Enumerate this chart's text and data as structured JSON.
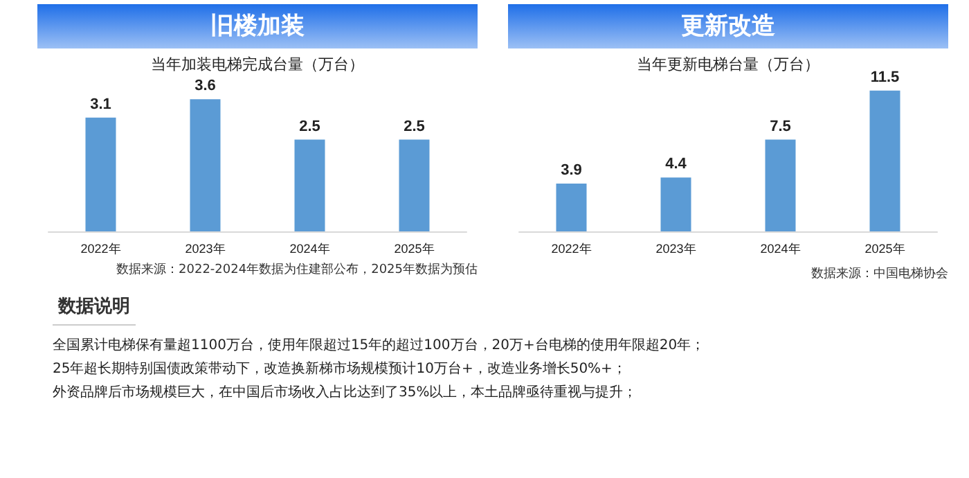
{
  "chart_data": [
    {
      "type": "bar",
      "title": "旧楼加装",
      "subtitle": "当年加装电梯完成台量（万台）",
      "categories": [
        "2022年",
        "2023年",
        "2024年",
        "2025年"
      ],
      "values": [
        3.1,
        3.6,
        2.5,
        2.5
      ],
      "color": "#5b9bd5",
      "data_labels": true,
      "annotations": [
        "数据来源：2022-2024年数据为住建部公布，2025年数据为预估"
      ]
    },
    {
      "type": "bar",
      "title": "更新改造",
      "subtitle": "当年更新电梯台量（万台）",
      "categories": [
        "2022年",
        "2023年",
        "2024年",
        "2025年"
      ],
      "values": [
        3.9,
        4.4,
        7.5,
        11.5
      ],
      "color": "#5b9bd5",
      "data_labels": true,
      "annotations": [
        "数据来源：中国电梯协会",
        "数据说明",
        "全国累计电梯保有量超1100万台，使用年限超过15年的超过100万台，20万+台电梯的使用年限超20年；",
        "25年超长期特别国债政策带动下，改造换新梯市场规模预计10万台+，改造业务增长50%+；",
        "外资品牌后市场规模巨大，在中国后市场收入占比达到了35%以上，本土品牌亟待重视与提升；"
      ]
    }
  ]
}
